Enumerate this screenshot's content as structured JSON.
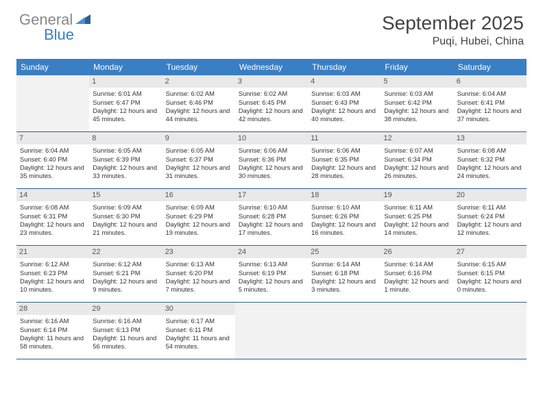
{
  "logo": {
    "line1": "General",
    "line2": "Blue",
    "icon_color": "#2f5f93"
  },
  "title": "September 2025",
  "location": "Puqi, Hubei, China",
  "header_bg": "#3a7fc4",
  "daynum_bg": "#e9e9e9",
  "border_color": "#2f5f93",
  "days_of_week": [
    "Sunday",
    "Monday",
    "Tuesday",
    "Wednesday",
    "Thursday",
    "Friday",
    "Saturday"
  ],
  "weeks": [
    [
      {
        "empty": true
      },
      {
        "n": "1",
        "sr": "Sunrise: 6:01 AM",
        "ss": "Sunset: 6:47 PM",
        "dl": "Daylight: 12 hours and 45 minutes."
      },
      {
        "n": "2",
        "sr": "Sunrise: 6:02 AM",
        "ss": "Sunset: 6:46 PM",
        "dl": "Daylight: 12 hours and 44 minutes."
      },
      {
        "n": "3",
        "sr": "Sunrise: 6:02 AM",
        "ss": "Sunset: 6:45 PM",
        "dl": "Daylight: 12 hours and 42 minutes."
      },
      {
        "n": "4",
        "sr": "Sunrise: 6:03 AM",
        "ss": "Sunset: 6:43 PM",
        "dl": "Daylight: 12 hours and 40 minutes."
      },
      {
        "n": "5",
        "sr": "Sunrise: 6:03 AM",
        "ss": "Sunset: 6:42 PM",
        "dl": "Daylight: 12 hours and 38 minutes."
      },
      {
        "n": "6",
        "sr": "Sunrise: 6:04 AM",
        "ss": "Sunset: 6:41 PM",
        "dl": "Daylight: 12 hours and 37 minutes."
      }
    ],
    [
      {
        "n": "7",
        "sr": "Sunrise: 6:04 AM",
        "ss": "Sunset: 6:40 PM",
        "dl": "Daylight: 12 hours and 35 minutes."
      },
      {
        "n": "8",
        "sr": "Sunrise: 6:05 AM",
        "ss": "Sunset: 6:39 PM",
        "dl": "Daylight: 12 hours and 33 minutes."
      },
      {
        "n": "9",
        "sr": "Sunrise: 6:05 AM",
        "ss": "Sunset: 6:37 PM",
        "dl": "Daylight: 12 hours and 31 minutes."
      },
      {
        "n": "10",
        "sr": "Sunrise: 6:06 AM",
        "ss": "Sunset: 6:36 PM",
        "dl": "Daylight: 12 hours and 30 minutes."
      },
      {
        "n": "11",
        "sr": "Sunrise: 6:06 AM",
        "ss": "Sunset: 6:35 PM",
        "dl": "Daylight: 12 hours and 28 minutes."
      },
      {
        "n": "12",
        "sr": "Sunrise: 6:07 AM",
        "ss": "Sunset: 6:34 PM",
        "dl": "Daylight: 12 hours and 26 minutes."
      },
      {
        "n": "13",
        "sr": "Sunrise: 6:08 AM",
        "ss": "Sunset: 6:32 PM",
        "dl": "Daylight: 12 hours and 24 minutes."
      }
    ],
    [
      {
        "n": "14",
        "sr": "Sunrise: 6:08 AM",
        "ss": "Sunset: 6:31 PM",
        "dl": "Daylight: 12 hours and 23 minutes."
      },
      {
        "n": "15",
        "sr": "Sunrise: 6:09 AM",
        "ss": "Sunset: 6:30 PM",
        "dl": "Daylight: 12 hours and 21 minutes."
      },
      {
        "n": "16",
        "sr": "Sunrise: 6:09 AM",
        "ss": "Sunset: 6:29 PM",
        "dl": "Daylight: 12 hours and 19 minutes."
      },
      {
        "n": "17",
        "sr": "Sunrise: 6:10 AM",
        "ss": "Sunset: 6:28 PM",
        "dl": "Daylight: 12 hours and 17 minutes."
      },
      {
        "n": "18",
        "sr": "Sunrise: 6:10 AM",
        "ss": "Sunset: 6:26 PM",
        "dl": "Daylight: 12 hours and 16 minutes."
      },
      {
        "n": "19",
        "sr": "Sunrise: 6:11 AM",
        "ss": "Sunset: 6:25 PM",
        "dl": "Daylight: 12 hours and 14 minutes."
      },
      {
        "n": "20",
        "sr": "Sunrise: 6:11 AM",
        "ss": "Sunset: 6:24 PM",
        "dl": "Daylight: 12 hours and 12 minutes."
      }
    ],
    [
      {
        "n": "21",
        "sr": "Sunrise: 6:12 AM",
        "ss": "Sunset: 6:23 PM",
        "dl": "Daylight: 12 hours and 10 minutes."
      },
      {
        "n": "22",
        "sr": "Sunrise: 6:12 AM",
        "ss": "Sunset: 6:21 PM",
        "dl": "Daylight: 12 hours and 9 minutes."
      },
      {
        "n": "23",
        "sr": "Sunrise: 6:13 AM",
        "ss": "Sunset: 6:20 PM",
        "dl": "Daylight: 12 hours and 7 minutes."
      },
      {
        "n": "24",
        "sr": "Sunrise: 6:13 AM",
        "ss": "Sunset: 6:19 PM",
        "dl": "Daylight: 12 hours and 5 minutes."
      },
      {
        "n": "25",
        "sr": "Sunrise: 6:14 AM",
        "ss": "Sunset: 6:18 PM",
        "dl": "Daylight: 12 hours and 3 minutes."
      },
      {
        "n": "26",
        "sr": "Sunrise: 6:14 AM",
        "ss": "Sunset: 6:16 PM",
        "dl": "Daylight: 12 hours and 1 minute."
      },
      {
        "n": "27",
        "sr": "Sunrise: 6:15 AM",
        "ss": "Sunset: 6:15 PM",
        "dl": "Daylight: 12 hours and 0 minutes."
      }
    ],
    [
      {
        "n": "28",
        "sr": "Sunrise: 6:16 AM",
        "ss": "Sunset: 6:14 PM",
        "dl": "Daylight: 11 hours and 58 minutes."
      },
      {
        "n": "29",
        "sr": "Sunrise: 6:16 AM",
        "ss": "Sunset: 6:13 PM",
        "dl": "Daylight: 11 hours and 56 minutes."
      },
      {
        "n": "30",
        "sr": "Sunrise: 6:17 AM",
        "ss": "Sunset: 6:11 PM",
        "dl": "Daylight: 11 hours and 54 minutes."
      },
      {
        "empty": true
      },
      {
        "empty": true
      },
      {
        "empty": true
      },
      {
        "empty": true
      }
    ]
  ]
}
